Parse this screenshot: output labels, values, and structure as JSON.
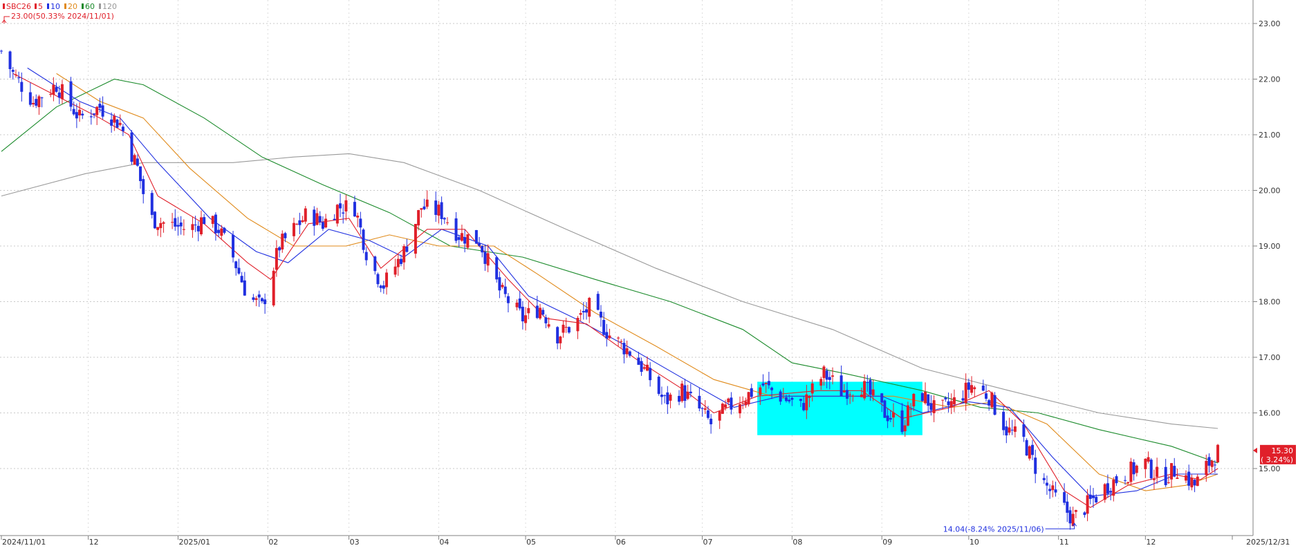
{
  "chart_data": {
    "type": "candlestick",
    "symbol": "SBC26",
    "legend": [
      {
        "label": "SBC26",
        "color": "#e0202a"
      },
      {
        "label": "5",
        "color": "#e0202a"
      },
      {
        "label": "10",
        "color": "#2030e0"
      },
      {
        "label": "20",
        "color": "#e08a1a"
      },
      {
        "label": "60",
        "color": "#1a8a2a"
      },
      {
        "label": "120",
        "color": "#999999"
      }
    ],
    "legend_placement": "top-left",
    "high_annotation": "23.00(50.33% 2024/11/01)",
    "low_annotation": "14.04(-8.24% 2025/11/06)",
    "current_price": "15.30",
    "current_change": "( 3.24%)",
    "ylim": [
      14.0,
      23.4
    ],
    "y_ticks": [
      "23.00",
      "22.00",
      "21.00",
      "20.00",
      "19.00",
      "18.00",
      "17.00",
      "16.00",
      "15.00"
    ],
    "x_ticks": [
      {
        "label": "2024/11/01",
        "date": "2024-11-01"
      },
      {
        "label": "12",
        "date": "2024-12-01"
      },
      {
        "label": "2025/01",
        "date": "2025-01-01"
      },
      {
        "label": "02",
        "date": "2025-02-01"
      },
      {
        "label": "03",
        "date": "2025-03-01"
      },
      {
        "label": "04",
        "date": "2025-04-01"
      },
      {
        "label": "05",
        "date": "2025-05-01"
      },
      {
        "label": "06",
        "date": "2025-06-01"
      },
      {
        "label": "07",
        "date": "2025-07-01"
      },
      {
        "label": "08",
        "date": "2025-08-01"
      },
      {
        "label": "09",
        "date": "2025-09-01"
      },
      {
        "label": "10",
        "date": "2025-10-01"
      },
      {
        "label": "11",
        "date": "2025-11-01"
      },
      {
        "label": "12",
        "date": "2025-12-01"
      },
      {
        "label": "2025/12/31",
        "date": "2025-12-31"
      }
    ],
    "x_range": [
      "2024-11-01",
      "2025-12-31"
    ],
    "highlight": {
      "start": "2025-07-20",
      "end": "2025-09-15",
      "y_top": 16.56,
      "y_bottom": 15.6,
      "color": "#00ffff"
    },
    "price_path": [
      [
        "2024-11-01",
        22.5
      ],
      [
        "2024-11-05",
        22.1
      ],
      [
        "2024-11-12",
        21.6
      ],
      [
        "2024-11-20",
        21.9
      ],
      [
        "2024-11-28",
        21.3
      ],
      [
        "2024-12-05",
        21.5
      ],
      [
        "2024-12-12",
        21.2
      ],
      [
        "2024-12-18",
        20.4
      ],
      [
        "2024-12-22",
        19.5
      ],
      [
        "2024-12-28",
        19.4
      ],
      [
        "2025-01-05",
        19.3
      ],
      [
        "2025-01-10",
        19.5
      ],
      [
        "2025-01-15",
        19.3
      ],
      [
        "2025-01-20",
        18.8
      ],
      [
        "2025-01-25",
        18.1
      ],
      [
        "2025-01-30",
        17.9
      ],
      [
        "2025-02-05",
        19.0
      ],
      [
        "2025-02-10",
        19.3
      ],
      [
        "2025-02-15",
        19.6
      ],
      [
        "2025-02-20",
        19.4
      ],
      [
        "2025-02-25",
        19.7
      ],
      [
        "2025-03-03",
        19.7
      ],
      [
        "2025-03-08",
        18.7
      ],
      [
        "2025-03-13",
        18.3
      ],
      [
        "2025-03-20",
        18.9
      ],
      [
        "2025-03-26",
        19.7
      ],
      [
        "2025-04-02",
        19.6
      ],
      [
        "2025-04-08",
        19.2
      ],
      [
        "2025-04-15",
        19.1
      ],
      [
        "2025-04-22",
        18.2
      ],
      [
        "2025-04-30",
        17.7
      ],
      [
        "2025-05-06",
        17.9
      ],
      [
        "2025-05-12",
        17.4
      ],
      [
        "2025-05-18",
        17.6
      ],
      [
        "2025-05-23",
        17.9
      ],
      [
        "2025-05-30",
        17.4
      ],
      [
        "2025-06-06",
        17.1
      ],
      [
        "2025-06-12",
        16.7
      ],
      [
        "2025-06-18",
        16.2
      ],
      [
        "2025-06-24",
        16.4
      ],
      [
        "2025-07-01",
        16.0
      ],
      [
        "2025-07-04",
        15.8
      ],
      [
        "2025-07-10",
        16.1
      ],
      [
        "2025-07-16",
        16.3
      ],
      [
        "2025-07-22",
        16.5
      ],
      [
        "2025-07-28",
        16.3
      ],
      [
        "2025-08-04",
        16.1
      ],
      [
        "2025-08-12",
        16.7
      ],
      [
        "2025-08-18",
        16.4
      ],
      [
        "2025-08-25",
        16.5
      ],
      [
        "2025-09-02",
        16.0
      ],
      [
        "2025-09-08",
        15.8
      ],
      [
        "2025-09-14",
        16.4
      ],
      [
        "2025-09-20",
        16.0
      ],
      [
        "2025-09-26",
        16.2
      ],
      [
        "2025-10-02",
        16.5
      ],
      [
        "2025-10-08",
        16.3
      ],
      [
        "2025-10-14",
        15.7
      ],
      [
        "2025-10-20",
        15.5
      ],
      [
        "2025-10-26",
        14.8
      ],
      [
        "2025-11-01",
        14.4
      ],
      [
        "2025-11-06",
        14.1
      ],
      [
        "2025-11-12",
        14.4
      ],
      [
        "2025-11-18",
        14.7
      ],
      [
        "2025-11-24",
        14.9
      ],
      [
        "2025-12-01",
        15.1
      ],
      [
        "2025-12-06",
        14.8
      ],
      [
        "2025-12-12",
        15.0
      ],
      [
        "2025-12-18",
        14.7
      ],
      [
        "2025-12-23",
        15.1
      ],
      [
        "2025-12-26",
        15.3
      ]
    ],
    "ma_lines": [
      {
        "label": "5",
        "color": "#e0202a",
        "points": [
          [
            "2024-11-05",
            22.1
          ],
          [
            "2024-11-20",
            21.7
          ],
          [
            "2024-12-05",
            21.3
          ],
          [
            "2024-12-15",
            21.0
          ],
          [
            "2024-12-25",
            19.9
          ],
          [
            "2025-01-10",
            19.4
          ],
          [
            "2025-01-25",
            18.7
          ],
          [
            "2025-02-02",
            18.4
          ],
          [
            "2025-02-15",
            19.4
          ],
          [
            "2025-03-01",
            19.5
          ],
          [
            "2025-03-12",
            18.6
          ],
          [
            "2025-03-28",
            19.3
          ],
          [
            "2025-04-10",
            19.3
          ],
          [
            "2025-04-25",
            18.4
          ],
          [
            "2025-05-08",
            17.7
          ],
          [
            "2025-05-22",
            17.6
          ],
          [
            "2025-06-10",
            16.9
          ],
          [
            "2025-06-25",
            16.4
          ],
          [
            "2025-07-05",
            16.0
          ],
          [
            "2025-07-20",
            16.3
          ],
          [
            "2025-08-10",
            16.4
          ],
          [
            "2025-08-25",
            16.4
          ],
          [
            "2025-09-08",
            15.9
          ],
          [
            "2025-09-25",
            16.1
          ],
          [
            "2025-10-08",
            16.4
          ],
          [
            "2025-10-20",
            15.8
          ],
          [
            "2025-11-03",
            14.6
          ],
          [
            "2025-11-12",
            14.3
          ],
          [
            "2025-11-25",
            14.7
          ],
          [
            "2025-12-10",
            14.9
          ],
          [
            "2025-12-20",
            14.8
          ],
          [
            "2025-12-26",
            15.0
          ]
        ]
      },
      {
        "label": "10",
        "color": "#2030e0",
        "points": [
          [
            "2024-11-10",
            22.2
          ],
          [
            "2024-11-28",
            21.6
          ],
          [
            "2024-12-12",
            21.3
          ],
          [
            "2024-12-25",
            20.5
          ],
          [
            "2025-01-12",
            19.5
          ],
          [
            "2025-01-28",
            18.9
          ],
          [
            "2025-02-08",
            18.7
          ],
          [
            "2025-02-22",
            19.3
          ],
          [
            "2025-03-08",
            19.1
          ],
          [
            "2025-03-20",
            18.8
          ],
          [
            "2025-04-02",
            19.3
          ],
          [
            "2025-04-18",
            19.0
          ],
          [
            "2025-05-02",
            18.1
          ],
          [
            "2025-05-18",
            17.7
          ],
          [
            "2025-06-05",
            17.2
          ],
          [
            "2025-06-25",
            16.6
          ],
          [
            "2025-07-12",
            16.1
          ],
          [
            "2025-07-28",
            16.3
          ],
          [
            "2025-08-15",
            16.3
          ],
          [
            "2025-09-01",
            16.3
          ],
          [
            "2025-09-15",
            16.0
          ],
          [
            "2025-10-01",
            16.2
          ],
          [
            "2025-10-15",
            16.1
          ],
          [
            "2025-10-30",
            15.2
          ],
          [
            "2025-11-12",
            14.5
          ],
          [
            "2025-11-28",
            14.6
          ],
          [
            "2025-12-12",
            14.9
          ],
          [
            "2025-12-26",
            14.9
          ]
        ]
      },
      {
        "label": "20",
        "color": "#e08a1a",
        "points": [
          [
            "2024-11-20",
            22.1
          ],
          [
            "2024-12-05",
            21.6
          ],
          [
            "2024-12-20",
            21.3
          ],
          [
            "2025-01-05",
            20.4
          ],
          [
            "2025-01-25",
            19.5
          ],
          [
            "2025-02-10",
            19.0
          ],
          [
            "2025-02-28",
            19.0
          ],
          [
            "2025-03-15",
            19.2
          ],
          [
            "2025-04-01",
            19.0
          ],
          [
            "2025-04-20",
            19.0
          ],
          [
            "2025-05-05",
            18.5
          ],
          [
            "2025-05-25",
            17.8
          ],
          [
            "2025-06-15",
            17.2
          ],
          [
            "2025-07-05",
            16.6
          ],
          [
            "2025-07-25",
            16.3
          ],
          [
            "2025-08-15",
            16.3
          ],
          [
            "2025-09-05",
            16.3
          ],
          [
            "2025-09-25",
            16.1
          ],
          [
            "2025-10-10",
            16.2
          ],
          [
            "2025-10-28",
            15.8
          ],
          [
            "2025-11-15",
            14.9
          ],
          [
            "2025-12-01",
            14.6
          ],
          [
            "2025-12-15",
            14.7
          ],
          [
            "2025-12-26",
            14.9
          ]
        ]
      },
      {
        "label": "60",
        "color": "#1a8a2a",
        "points": [
          [
            "2024-11-01",
            20.7
          ],
          [
            "2024-11-20",
            21.5
          ],
          [
            "2024-12-10",
            22.0
          ],
          [
            "2024-12-20",
            21.9
          ],
          [
            "2025-01-10",
            21.3
          ],
          [
            "2025-01-30",
            20.6
          ],
          [
            "2025-02-20",
            20.1
          ],
          [
            "2025-03-15",
            19.6
          ],
          [
            "2025-04-05",
            19.0
          ],
          [
            "2025-04-30",
            18.8
          ],
          [
            "2025-05-25",
            18.4
          ],
          [
            "2025-06-20",
            18.0
          ],
          [
            "2025-07-15",
            17.5
          ],
          [
            "2025-08-01",
            16.9
          ],
          [
            "2025-08-20",
            16.7
          ],
          [
            "2025-09-15",
            16.4
          ],
          [
            "2025-10-05",
            16.1
          ],
          [
            "2025-10-25",
            16.0
          ],
          [
            "2025-11-15",
            15.7
          ],
          [
            "2025-12-10",
            15.4
          ],
          [
            "2025-12-26",
            15.1
          ]
        ]
      },
      {
        "label": "120",
        "color": "#999999",
        "points": [
          [
            "2024-11-01",
            19.9
          ],
          [
            "2024-11-30",
            20.3
          ],
          [
            "2024-12-20",
            20.5
          ],
          [
            "2025-01-20",
            20.5
          ],
          [
            "2025-02-10",
            20.6
          ],
          [
            "2025-03-01",
            20.66
          ],
          [
            "2025-03-20",
            20.5
          ],
          [
            "2025-04-15",
            20.0
          ],
          [
            "2025-05-15",
            19.3
          ],
          [
            "2025-06-15",
            18.6
          ],
          [
            "2025-07-15",
            18.0
          ],
          [
            "2025-08-15",
            17.5
          ],
          [
            "2025-09-15",
            16.8
          ],
          [
            "2025-10-15",
            16.4
          ],
          [
            "2025-11-15",
            16.0
          ],
          [
            "2025-12-10",
            15.8
          ],
          [
            "2025-12-26",
            15.72
          ]
        ]
      }
    ]
  }
}
